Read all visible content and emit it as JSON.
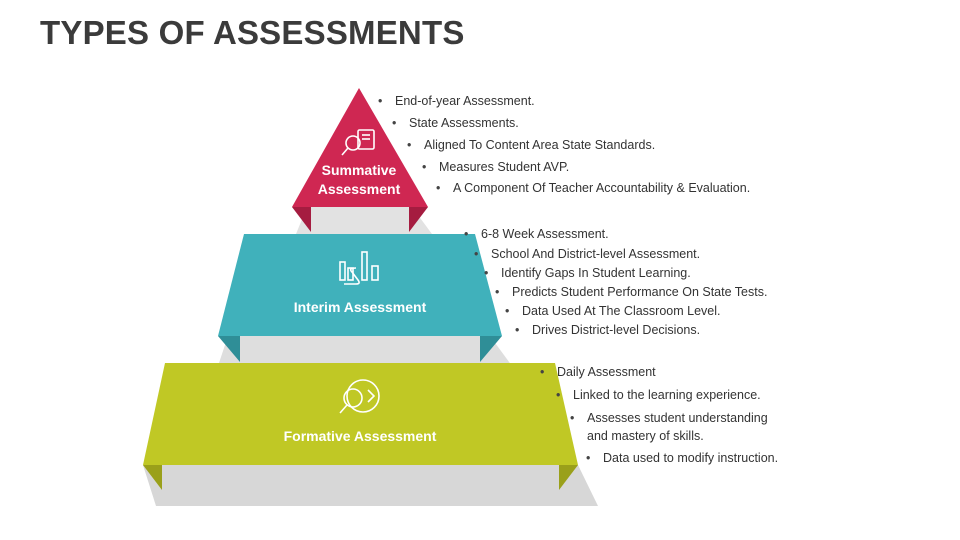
{
  "title": "TYPES OF ASSESSMENTS",
  "colors": {
    "summative": "#cf2752",
    "interim": "#40b1bb",
    "formative": "#c0c825",
    "grey_band": "#dcdcdc"
  },
  "tiers": [
    {
      "label_line1": "Summative",
      "label_line2": "Assessment",
      "icon": "assessment-document-icon",
      "bullets": [
        "End-of-year Assessment.",
        "State Assessments.",
        "Aligned To Content Area State Standards.",
        "Measures Student AVP.",
        "A Component Of Teacher Accountability & Evaluation."
      ]
    },
    {
      "label": "Interim Assessment",
      "icon": "bar-chart-icon",
      "bullets": [
        "6-8 Week Assessment.",
        "School And District-level Assessment.",
        "Identify Gaps In Student Learning.",
        "Predicts Student Performance On State Tests.",
        "Data Used At The Classroom Level.",
        "Drives District-level Decisions."
      ]
    },
    {
      "label": "Formative Assessment",
      "icon": "magnifier-cycle-icon",
      "bullets": [
        "Daily Assessment",
        "Linked to the learning experience.",
        "Assesses student understanding and mastery of skills.",
        "Data used to modify instruction."
      ]
    }
  ]
}
